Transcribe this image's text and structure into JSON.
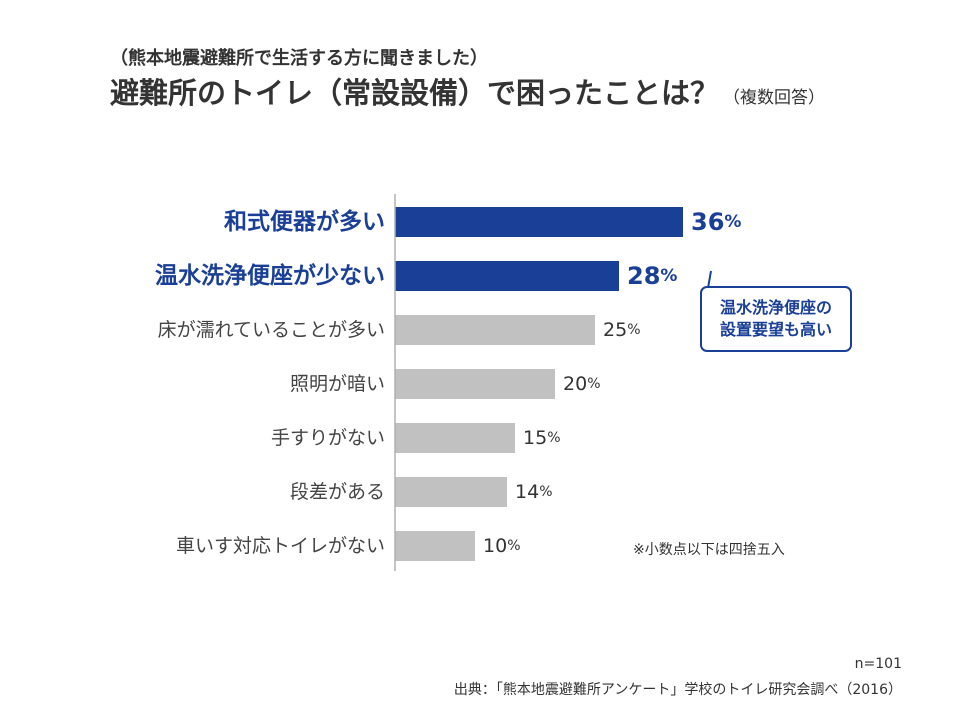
{
  "header": {
    "subtitle": "（熊本地震避難所で生活する方に聞きました）",
    "title": "避難所のトイレ（常設設備）で困ったことは？",
    "title_note": "（複数回答）"
  },
  "chart_data": {
    "type": "bar",
    "orientation": "horizontal",
    "title": "避難所のトイレ（常設設備）で困ったことは？",
    "categories": [
      "和式便器が多い",
      "温水洗浄便座が少ない",
      "床が濡れていることが多い",
      "照明が暗い",
      "手すりがない",
      "段差がある",
      "車いす対応トイレがない"
    ],
    "values": [
      36,
      28,
      25,
      20,
      15,
      14,
      10
    ],
    "value_unit": "%",
    "highlighted": [
      true,
      true,
      false,
      false,
      false,
      false,
      false
    ],
    "xlim": [
      0,
      40
    ],
    "grid": false,
    "legend": "none",
    "colors": {
      "highlight": "#1a3f97",
      "normal": "#c1c1c1",
      "axis": "#b0b0b0"
    }
  },
  "annotations": {
    "callout_lines": [
      "温水洗浄便座の",
      "設置要望も高い"
    ],
    "footnote": "※小数点以下は四捨五入"
  },
  "footer": {
    "sample_size": "n=101",
    "source": "出典：「熊本地震避難所アンケート」学校のトイレ研究会調べ（2016）"
  }
}
